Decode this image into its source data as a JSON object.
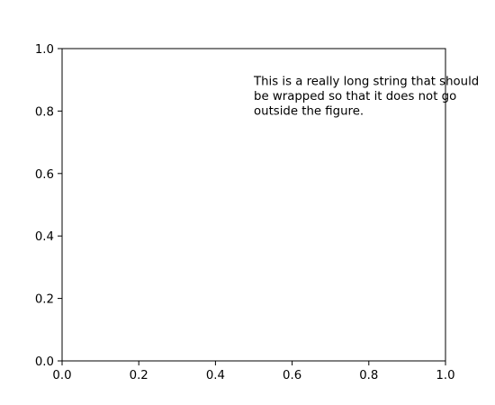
{
  "chart_data": {
    "type": "scatter",
    "title": "",
    "xlabel": "",
    "ylabel": "",
    "xlim": [
      0.0,
      1.0
    ],
    "ylim": [
      0.0,
      1.0
    ],
    "grid": false,
    "series": [],
    "xticks": [
      0.0,
      0.2,
      0.4,
      0.6,
      0.8,
      1.0
    ],
    "yticks": [
      0.0,
      0.2,
      0.4,
      0.6,
      0.8,
      1.0
    ],
    "xtick_labels": [
      "0.0",
      "0.2",
      "0.4",
      "0.6",
      "0.8",
      "1.0"
    ],
    "ytick_labels": [
      "0.0",
      "0.2",
      "0.4",
      "0.6",
      "0.8",
      "1.0"
    ],
    "annotation": {
      "x": 0.5,
      "y": 0.85,
      "lines": [
        "This is a really long string that should",
        "be wrapped so that it does not go",
        "outside the figure."
      ]
    }
  }
}
